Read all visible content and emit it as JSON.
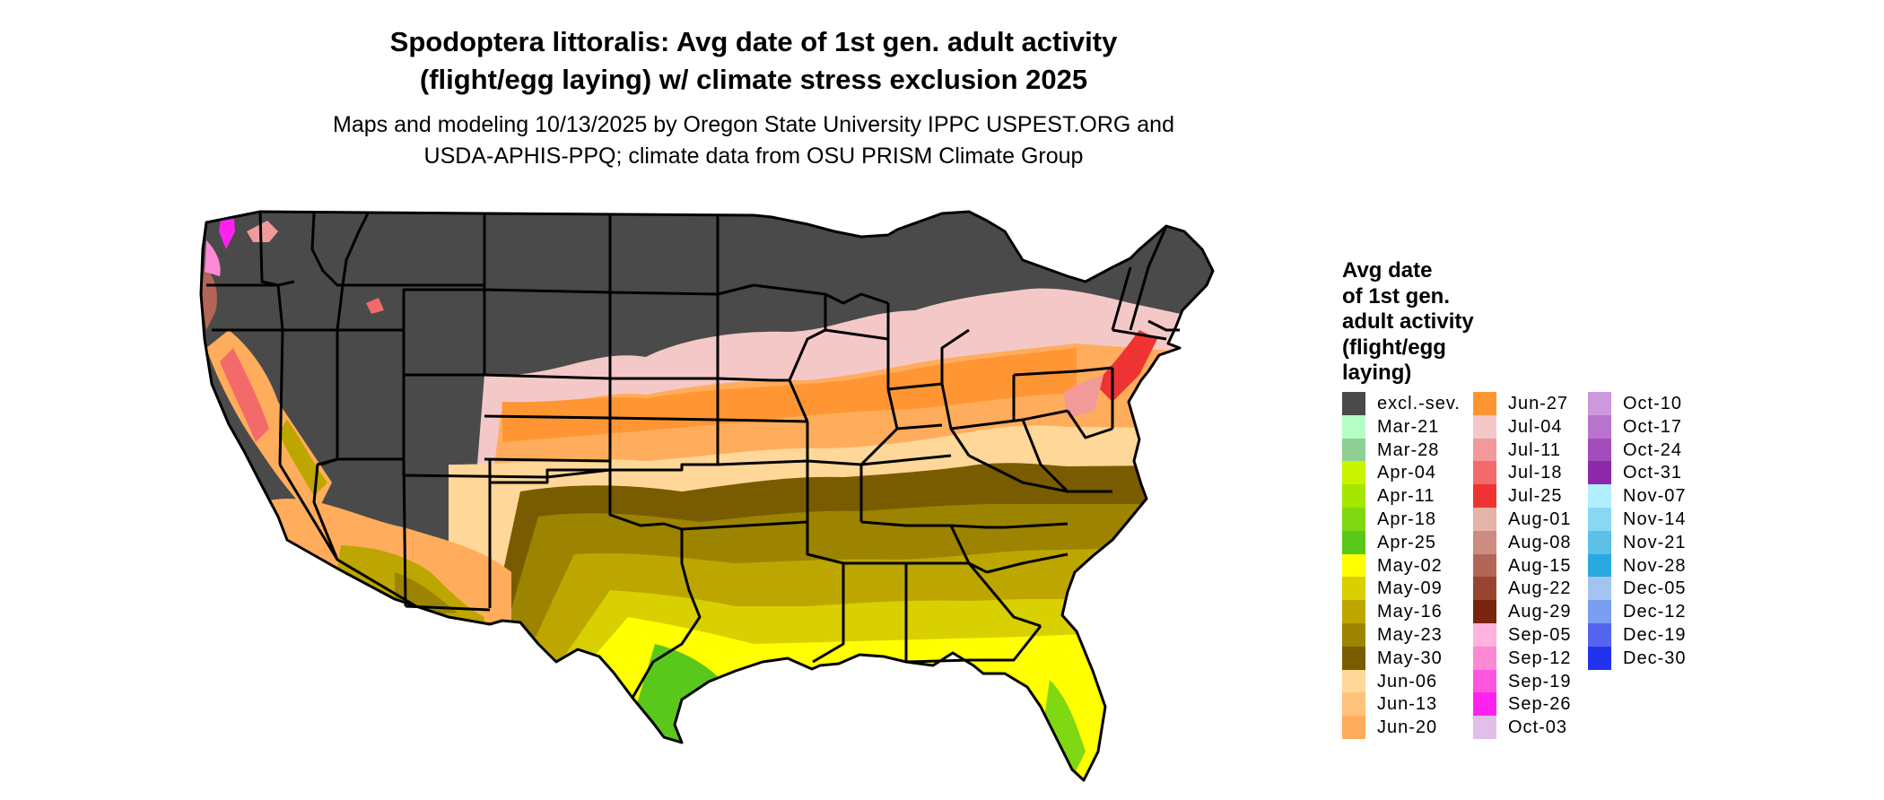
{
  "header": {
    "title_line1": "Spodoptera littoralis: Avg date of 1st gen. adult activity",
    "title_line2": "(flight/egg laying) w/ climate stress exclusion 2025",
    "subtitle_line1": "Maps and modeling 10/13/2025 by Oregon State University IPPC USPEST.ORG and",
    "subtitle_line2": "USDA-APHIS-PPQ; climate data from OSU PRISM Climate Group"
  },
  "legend": {
    "title_lines": [
      "Avg date",
      "of 1st gen.",
      "adult activity",
      "(flight/egg",
      "laying)"
    ],
    "columns": [
      [
        {
          "label": "excl.-sev.",
          "color": "#4a4a4a"
        },
        {
          "label": "Mar-21",
          "color": "#b3ffc4"
        },
        {
          "label": "Mar-28",
          "color": "#8fcf93"
        },
        {
          "label": "Apr-04",
          "color": "#c8f400"
        },
        {
          "label": "Apr-11",
          "color": "#a4e600"
        },
        {
          "label": "Apr-18",
          "color": "#7fd812"
        },
        {
          "label": "Apr-25",
          "color": "#5ac81a"
        },
        {
          "label": "May-02",
          "color": "#ffff00"
        },
        {
          "label": "May-09",
          "color": "#d8d000"
        },
        {
          "label": "May-16",
          "color": "#bda600"
        },
        {
          "label": "May-23",
          "color": "#9c8400"
        },
        {
          "label": "May-30",
          "color": "#7a5c00"
        },
        {
          "label": "Jun-06",
          "color": "#ffd799"
        },
        {
          "label": "Jun-13",
          "color": "#ffc27a"
        },
        {
          "label": "Jun-20",
          "color": "#ffad5c"
        }
      ],
      [
        {
          "label": "Jun-27",
          "color": "#ff9633"
        },
        {
          "label": "Jul-04",
          "color": "#f5c8c8"
        },
        {
          "label": "Jul-11",
          "color": "#f29a9a"
        },
        {
          "label": "Jul-18",
          "color": "#f26a6a"
        },
        {
          "label": "Jul-25",
          "color": "#ee3333"
        },
        {
          "label": "Aug-01",
          "color": "#e5b3a8"
        },
        {
          "label": "Aug-08",
          "color": "#cc8c80"
        },
        {
          "label": "Aug-15",
          "color": "#b36658"
        },
        {
          "label": "Aug-22",
          "color": "#994433"
        },
        {
          "label": "Aug-29",
          "color": "#7a2410"
        },
        {
          "label": "Sep-05",
          "color": "#ffb3dd"
        },
        {
          "label": "Sep-12",
          "color": "#ff88d4"
        },
        {
          "label": "Sep-19",
          "color": "#ff55e0"
        },
        {
          "label": "Sep-26",
          "color": "#ff22ee"
        },
        {
          "label": "Oct-03",
          "color": "#e0c0e8"
        }
      ],
      [
        {
          "label": "Oct-10",
          "color": "#cc99dd"
        },
        {
          "label": "Oct-17",
          "color": "#b873cc"
        },
        {
          "label": "Oct-24",
          "color": "#a24dbb"
        },
        {
          "label": "Oct-31",
          "color": "#8c29aa"
        },
        {
          "label": "Nov-07",
          "color": "#b3eeff"
        },
        {
          "label": "Nov-14",
          "color": "#88d8f4"
        },
        {
          "label": "Nov-21",
          "color": "#5cc0ea"
        },
        {
          "label": "Nov-28",
          "color": "#2aa8e0"
        },
        {
          "label": "Dec-05",
          "color": "#a3c4f0"
        },
        {
          "label": "Dec-12",
          "color": "#7a9ef0"
        },
        {
          "label": "Dec-19",
          "color": "#5566ee"
        },
        {
          "label": "Dec-30",
          "color": "#2233ee"
        }
      ]
    ]
  }
}
